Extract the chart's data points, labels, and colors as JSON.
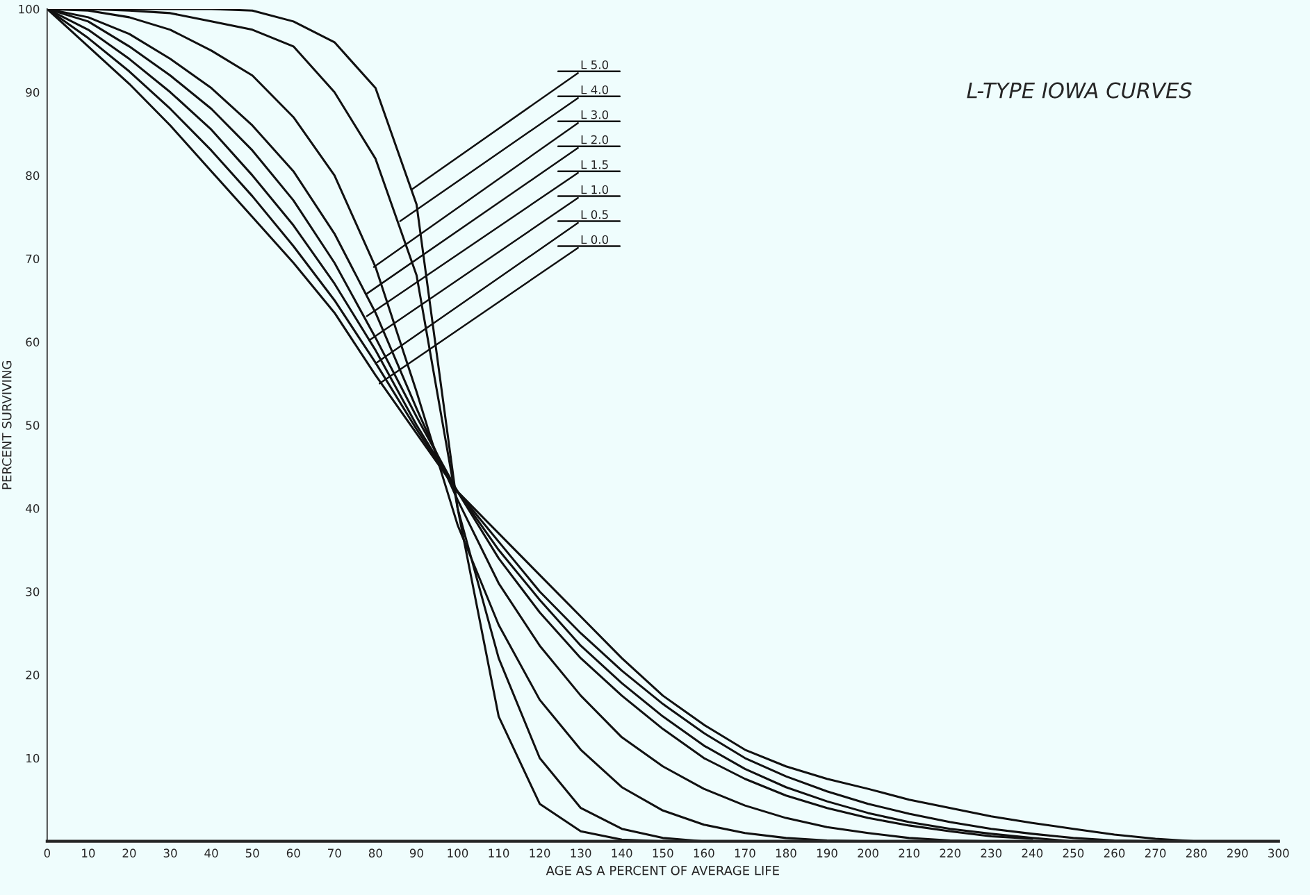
{
  "chart_data": {
    "type": "line",
    "title": "L-TYPE IOWA CURVES",
    "xlabel": "AGE AS A PERCENT OF AVERAGE LIFE",
    "ylabel": "PERCENT SURVIVING",
    "xlim": [
      0,
      300
    ],
    "ylim": [
      0,
      100
    ],
    "xticks": [
      0,
      10,
      20,
      30,
      40,
      50,
      60,
      70,
      80,
      90,
      100,
      110,
      120,
      130,
      140,
      150,
      160,
      170,
      180,
      190,
      200,
      210,
      220,
      230,
      240,
      250,
      260,
      270,
      280,
      290,
      300
    ],
    "yticks": [
      10,
      20,
      30,
      40,
      50,
      60,
      70,
      80,
      90,
      100
    ],
    "grid": false,
    "legend": false,
    "marker": "none",
    "line_style": "solid",
    "series": [
      {
        "color": "#111111",
        "x": [
          0,
          10,
          20,
          30,
          40,
          50,
          60,
          70,
          80,
          90,
          100,
          110,
          120,
          130,
          140,
          150
        ],
        "values": [
          100,
          100,
          100,
          100,
          100,
          99.8,
          98.5,
          96,
          90.5,
          76.5,
          40,
          15,
          4.5,
          1.2,
          0.2,
          0
        ]
      },
      {
        "color": "#111111",
        "x": [
          0,
          10,
          20,
          30,
          40,
          50,
          60,
          70,
          80,
          90,
          100,
          110,
          120,
          130,
          140,
          150,
          160
        ],
        "values": [
          100,
          100,
          99.8,
          99.5,
          98.5,
          97.5,
          95.5,
          90,
          82,
          68,
          40,
          22,
          10,
          4,
          1.5,
          0.4,
          0
        ]
      },
      {
        "color": "#111111",
        "x": [
          0,
          10,
          20,
          30,
          40,
          50,
          60,
          70,
          80,
          90,
          100,
          110,
          120,
          130,
          140,
          150,
          160,
          170,
          180,
          190,
          200
        ],
        "values": [
          100,
          99.8,
          99,
          97.5,
          95,
          92,
          87,
          80,
          69,
          54,
          38,
          26,
          17,
          11,
          6.5,
          3.7,
          2,
          1,
          0.4,
          0.1,
          0
        ]
      },
      {
        "color": "#111111",
        "x": [
          0,
          10,
          20,
          30,
          40,
          50,
          60,
          70,
          80,
          90,
          100,
          110,
          120,
          130,
          140,
          150,
          160,
          170,
          180,
          190,
          200,
          210,
          220,
          230
        ],
        "values": [
          100,
          99,
          97,
          94,
          90.5,
          86,
          80.5,
          73,
          63.5,
          52,
          41,
          31,
          23.5,
          17.5,
          12.5,
          9,
          6.3,
          4.3,
          2.8,
          1.7,
          1,
          0.4,
          0.1,
          0
        ]
      },
      {
        "color": "#111111",
        "x": [
          0,
          10,
          20,
          30,
          40,
          50,
          60,
          70,
          80,
          90,
          100,
          110,
          120,
          130,
          140,
          150,
          160,
          170,
          180,
          190,
          200,
          210,
          220,
          230,
          240
        ],
        "values": [
          100,
          98.5,
          95.5,
          92,
          88,
          83,
          77,
          69.5,
          60.5,
          51,
          42,
          34,
          27.5,
          22,
          17.5,
          13.5,
          10,
          7.5,
          5.5,
          4,
          2.8,
          1.9,
          1.2,
          0.6,
          0.3
        ]
      },
      {
        "color": "#111111",
        "x": [
          0,
          10,
          20,
          30,
          40,
          50,
          60,
          70,
          80,
          90,
          100,
          110,
          120,
          130,
          140,
          150,
          160,
          170,
          180,
          190,
          200,
          210,
          220,
          230,
          240,
          250
        ],
        "values": [
          100,
          97.5,
          94,
          90,
          85.5,
          80,
          74,
          67,
          59,
          50,
          42,
          35,
          29,
          23.5,
          19,
          15,
          11.5,
          8.7,
          6.5,
          4.8,
          3.4,
          2.3,
          1.5,
          0.9,
          0.4,
          0
        ]
      },
      {
        "color": "#111111",
        "x": [
          0,
          10,
          20,
          30,
          40,
          50,
          60,
          70,
          80,
          90,
          100,
          110,
          120,
          130,
          140,
          150,
          160,
          170,
          180,
          190,
          200,
          210,
          220,
          230,
          240,
          250,
          260,
          270
        ],
        "values": [
          100,
          96.5,
          92.5,
          88,
          83,
          77.5,
          71.5,
          65,
          57.5,
          49.5,
          42,
          36,
          30,
          25,
          20.5,
          16.5,
          13,
          10,
          7.8,
          6,
          4.5,
          3.3,
          2.3,
          1.5,
          0.9,
          0.4,
          0.1,
          0
        ]
      },
      {
        "color": "#111111",
        "x": [
          0,
          10,
          20,
          30,
          40,
          50,
          60,
          70,
          80,
          90,
          100,
          110,
          120,
          130,
          140,
          150,
          160,
          170,
          180,
          190,
          200,
          210,
          220,
          230,
          240,
          250,
          260,
          270,
          280
        ],
        "values": [
          100,
          95.5,
          91,
          86,
          80.5,
          75,
          69.5,
          63.5,
          56,
          49,
          42,
          37,
          32,
          27,
          22,
          17.5,
          14,
          11,
          9,
          7.5,
          6.3,
          5,
          4,
          3,
          2.2,
          1.5,
          0.8,
          0.3,
          0
        ]
      }
    ],
    "annotations": [
      {
        "text": "L 5.0",
        "x": 88.8,
        "y": 78.3
      },
      {
        "text": "L 4.0",
        "x": 86,
        "y": 74.5
      },
      {
        "text": "L 3.0",
        "x": 79.6,
        "y": 69
      },
      {
        "text": "L 2.0",
        "x": 77.9,
        "y": 65.8
      },
      {
        "text": "L 1.5",
        "x": 77.9,
        "y": 63.1
      },
      {
        "text": "L 1.0",
        "x": 78.5,
        "y": 60.2
      },
      {
        "text": "L 0.5",
        "x": 80,
        "y": 57.4
      },
      {
        "text": "L 0.0",
        "x": 81,
        "y": 55
      }
    ]
  }
}
